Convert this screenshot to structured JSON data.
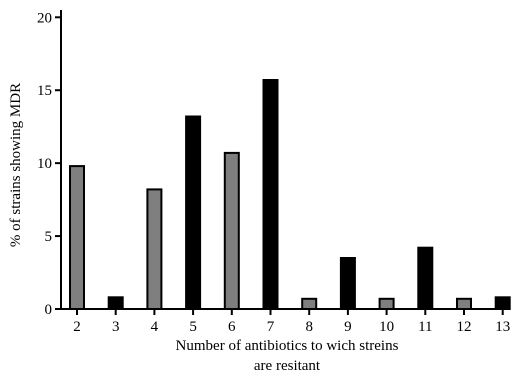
{
  "chart_data": {
    "type": "bar",
    "categories": [
      "2",
      "3",
      "4",
      "5",
      "6",
      "7",
      "8",
      "9",
      "10",
      "11",
      "12",
      "13"
    ],
    "values": [
      9.8,
      0.8,
      8.2,
      13.2,
      10.7,
      15.7,
      0.7,
      3.5,
      0.7,
      4.2,
      0.7,
      0.8
    ],
    "bar_colors": [
      "#7f7f7f",
      "#000000",
      "#7f7f7f",
      "#000000",
      "#7f7f7f",
      "#000000",
      "#7f7f7f",
      "#000000",
      "#7f7f7f",
      "#000000",
      "#7f7f7f",
      "#000000"
    ],
    "ylabel": "% of strains showing MDR",
    "xlabel_lines": [
      "Number of antibiotics to wich streins",
      "are resitant"
    ],
    "yticks": [
      0,
      5,
      10,
      15,
      20
    ],
    "ylim": [
      0,
      20.5
    ],
    "grid": false,
    "legend": "none"
  }
}
